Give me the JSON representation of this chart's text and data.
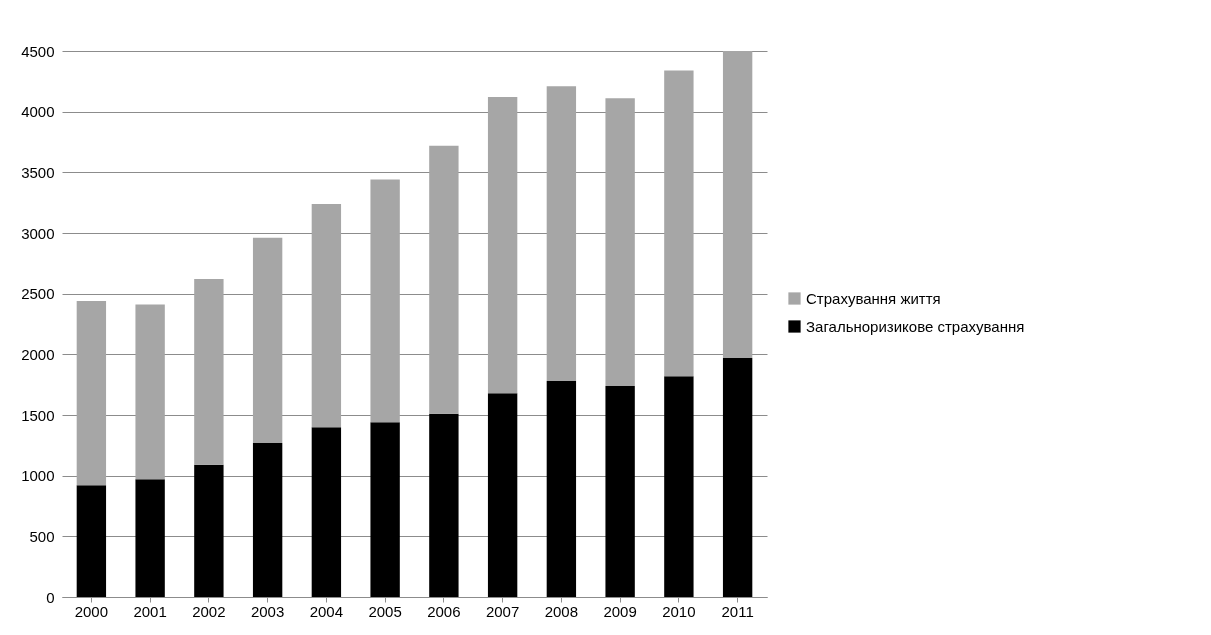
{
  "chart_data": {
    "type": "bar",
    "stacked": true,
    "categories": [
      "2000",
      "2001",
      "2002",
      "2003",
      "2004",
      "2005",
      "2006",
      "2007",
      "2008",
      "2009",
      "2010",
      "2011"
    ],
    "series": [
      {
        "name": "Загальноризикове страхування",
        "color": "#000000",
        "values": [
          920,
          970,
          1090,
          1270,
          1400,
          1440,
          1510,
          1680,
          1780,
          1740,
          1820,
          1970
        ]
      },
      {
        "name": "Страхування життя",
        "color": "#a6a6a6",
        "values": [
          1520,
          1440,
          1530,
          1690,
          1840,
          2000,
          2210,
          2440,
          2430,
          2370,
          2520,
          2530
        ]
      }
    ],
    "ylim": [
      0,
      4500
    ],
    "yticks": [
      0,
      500,
      1000,
      1500,
      2000,
      2500,
      3000,
      3500,
      4000,
      4500
    ],
    "grid": "y",
    "legend": "right"
  }
}
